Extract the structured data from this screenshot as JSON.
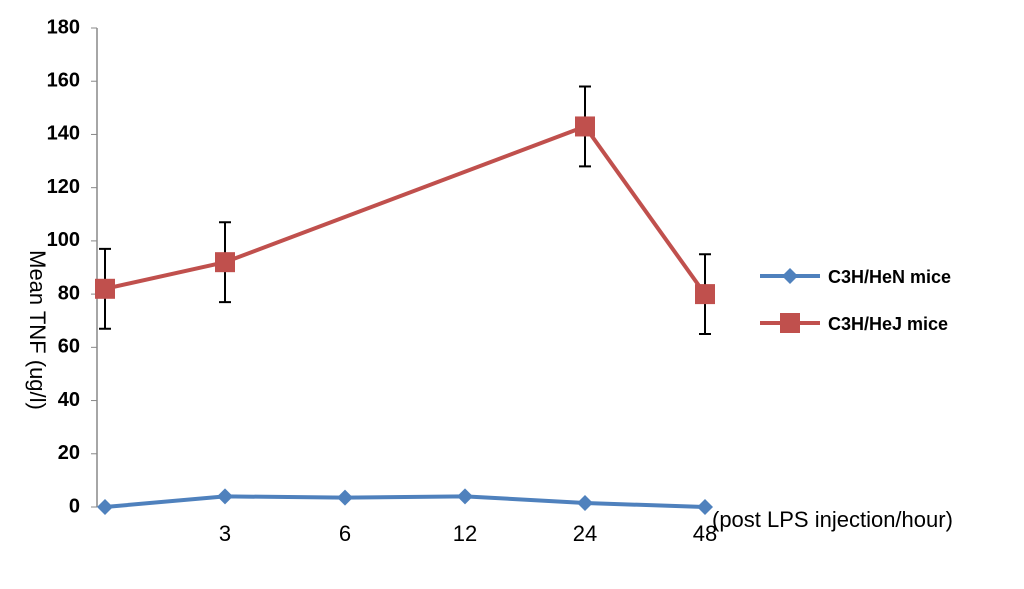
{
  "chart_data": {
    "type": "line",
    "y_label": "Mean  TNF  (ug/l)",
    "x_label": "(post LPS injection/hour)",
    "categories": [
      null,
      "3",
      "6",
      "12",
      "24",
      "48"
    ],
    "series": [
      {
        "name": "C3H/HeN mice",
        "color": "#4f81bd",
        "marker": "diamond",
        "values": [
          0,
          4,
          3.5,
          4,
          1.5,
          0
        ]
      },
      {
        "name": "C3H/HeJ mice",
        "color": "#c0504d",
        "marker": "square",
        "values": [
          82,
          92,
          null,
          null,
          143,
          80
        ],
        "errors": [
          15,
          15,
          null,
          null,
          15,
          15
        ]
      }
    ],
    "span_gaps": true,
    "ylim": [
      0,
      180
    ],
    "yticks": [
      0,
      20,
      40,
      60,
      80,
      100,
      120,
      140,
      160,
      180
    ],
    "legend": "right",
    "grid": false
  }
}
